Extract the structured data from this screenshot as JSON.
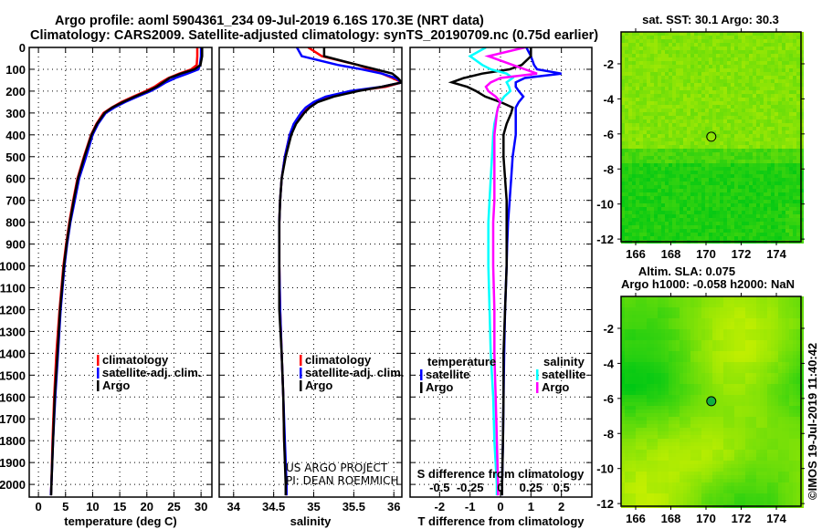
{
  "title": {
    "line1": "Argo profile: aoml 5904361_234 09-Jul-2019 6.16S 170.3E (NRT data)",
    "line2": "Climatology: CARS2009. Satellite-adjusted climatology: synTS_20190709.nc (0.75d earlier)"
  },
  "colors": {
    "climatology": "#ff0000",
    "satellite": "#0000ff",
    "argo": "#000000",
    "s_satellite": "#00ffff",
    "s_argo": "#ff00ff"
  },
  "depths": [
    0,
    40,
    80,
    100,
    120,
    140,
    160,
    180,
    200,
    225,
    250,
    275,
    300,
    350,
    400,
    500,
    600,
    700,
    800,
    900,
    1000,
    1200,
    1400,
    1600,
    1800,
    2000,
    2050
  ],
  "chart_data": [
    {
      "type": "line",
      "name": "temperature",
      "xlabel": "temperature (deg C)",
      "ylabel": "depth",
      "xlim": [
        -1.7,
        32
      ],
      "ylim": [
        2058,
        0
      ],
      "xticks": [
        0,
        5,
        10,
        15,
        20,
        25,
        30
      ],
      "yticks": [
        0,
        100,
        200,
        300,
        400,
        500,
        600,
        700,
        800,
        900,
        1000,
        1100,
        1200,
        1300,
        1400,
        1500,
        1600,
        1700,
        1800,
        1900,
        2000
      ],
      "legend": [
        {
          "label": "climatology",
          "color": "#ff0000"
        },
        {
          "label": "satellite-adj. clim.",
          "color": "#0000ff"
        },
        {
          "label": "Argo",
          "color": "#000000"
        }
      ],
      "series": [
        {
          "name": "climatology",
          "color": "#ff0000",
          "x": [
            29.3,
            29.3,
            29.2,
            28.2,
            26.0,
            24.0,
            22.6,
            21.4,
            19.8,
            17.5,
            15.3,
            13.5,
            12.0,
            10.7,
            9.7,
            8.4,
            7.2,
            6.4,
            5.7,
            5.1,
            4.6,
            3.9,
            3.3,
            2.9,
            2.6,
            2.4,
            2.3
          ]
        },
        {
          "name": "satellite-adj. clim.",
          "color": "#0000ff",
          "x": [
            30.0,
            30.0,
            29.8,
            29.5,
            27.5,
            25.3,
            23.5,
            22.2,
            20.7,
            18.3,
            16.0,
            14.0,
            12.4,
            11.0,
            10.0,
            8.8,
            7.5,
            6.7,
            5.9,
            5.3,
            4.8,
            4.1,
            3.6,
            3.1,
            2.7,
            2.4,
            2.3
          ]
        },
        {
          "name": "Argo",
          "color": "#000000",
          "x": [
            30.2,
            30.2,
            29.9,
            28.8,
            26.3,
            24.2,
            23.0,
            21.8,
            20.2,
            17.8,
            15.6,
            13.6,
            12.2,
            10.8,
            9.8,
            8.5,
            7.3,
            6.5,
            5.8,
            5.2,
            4.7,
            4.0,
            3.5,
            3.0,
            2.7,
            2.4,
            2.35
          ]
        }
      ]
    },
    {
      "type": "line",
      "name": "salinity",
      "xlabel": "salinity",
      "xlim": [
        33.82,
        36.1
      ],
      "ylim": [
        2058,
        0
      ],
      "xticks": [
        34,
        34.5,
        35,
        35.5,
        36
      ],
      "legend": [
        {
          "label": "climatology",
          "color": "#ff0000"
        },
        {
          "label": "satellite-adj. clim.",
          "color": "#0000ff"
        },
        {
          "label": "Argo",
          "color": "#000000"
        }
      ],
      "annotations": [
        "US ARGO PROJECT",
        "PI: DEAN ROEMMICH"
      ],
      "series": [
        {
          "name": "climatology",
          "color": "#ff0000",
          "x": [
            34.93,
            35.1,
            35.55,
            35.7,
            35.85,
            35.98,
            36.1,
            35.9,
            35.5,
            35.2,
            35.02,
            34.92,
            34.85,
            34.76,
            34.7,
            34.64,
            34.6,
            34.58,
            34.57,
            34.57,
            34.57,
            34.58,
            34.6,
            34.62,
            34.63,
            34.66,
            34.66
          ]
        },
        {
          "name": "satellite-adj. clim.",
          "color": "#0000ff",
          "x": [
            34.79,
            34.85,
            35.3,
            35.6,
            35.85,
            36.02,
            36.1,
            35.85,
            35.45,
            35.15,
            35.0,
            34.9,
            34.84,
            34.75,
            34.7,
            34.64,
            34.6,
            34.58,
            34.57,
            34.57,
            34.57,
            34.58,
            34.6,
            34.62,
            34.64,
            34.66,
            34.66
          ]
        },
        {
          "name": "Argo",
          "color": "#000000",
          "x": [
            35.13,
            35.13,
            35.55,
            35.77,
            35.98,
            36.05,
            36.1,
            35.85,
            35.55,
            35.25,
            35.05,
            34.95,
            34.88,
            34.78,
            34.72,
            34.65,
            34.6,
            34.58,
            34.57,
            34.57,
            34.57,
            34.57,
            34.6,
            34.62,
            34.63,
            34.65,
            34.65
          ]
        }
      ]
    },
    {
      "type": "line",
      "name": "difference",
      "xlabel": "T difference from climatology",
      "xlabel2": "S difference from climatology",
      "xlim": [
        -2.97,
        3.0
      ],
      "ylim": [
        2058,
        0
      ],
      "xticks": [
        -2,
        -1,
        0,
        1,
        2
      ],
      "xticks2": [
        -0.5,
        -0.25,
        0,
        0.25,
        0.5
      ],
      "xticks2_labels": [
        "-0.5",
        "-0.25",
        "0",
        "0.25",
        "0.5"
      ],
      "s_scale": 4,
      "legend_t": {
        "title": "temperature",
        "items": [
          {
            "label": "satellite",
            "color": "#0000ff"
          },
          {
            "label": "Argo",
            "color": "#000000"
          }
        ]
      },
      "legend_s": {
        "title": "salinity",
        "items": [
          {
            "label": "satellite",
            "color": "#00ffff"
          },
          {
            "label": "Argo",
            "color": "#ff00ff"
          }
        ]
      },
      "series": [
        {
          "name": "T satellite",
          "kind": "T",
          "color": "#0000ff",
          "x": [
            0.85,
            1.0,
            1.1,
            1.2,
            2.0,
            0.8,
            0.5,
            0.5,
            0.6,
            0.75,
            0.6,
            0.5,
            0.5,
            0.5,
            0.5,
            0.4,
            0.35,
            0.3,
            0.25,
            0.22,
            0.2,
            0.15,
            0.12,
            0.1,
            0.08,
            0.05,
            0.05
          ]
        },
        {
          "name": "T Argo",
          "kind": "T",
          "color": "#000000",
          "x": [
            1.0,
            1.0,
            0.7,
            0.3,
            -0.6,
            -1.2,
            -1.6,
            -1.1,
            -0.8,
            -0.5,
            0.0,
            0.4,
            0.35,
            0.2,
            0.1,
            0.1,
            0.15,
            0.2,
            0.2,
            0.2,
            0.2,
            0.15,
            0.1,
            0.1,
            0.08,
            0.05,
            0.05
          ]
        },
        {
          "name": "S satellite",
          "kind": "S",
          "color": "#00ffff",
          "x": [
            -0.12,
            -0.25,
            -0.15,
            -0.08,
            0.05,
            0.1,
            0.05,
            0.07,
            0.08,
            0.03,
            0.0,
            -0.02,
            -0.03,
            -0.05,
            -0.06,
            -0.07,
            -0.08,
            -0.09,
            -0.1,
            -0.1,
            -0.1,
            -0.09,
            -0.08,
            -0.06,
            -0.05,
            -0.03,
            -0.03
          ]
        },
        {
          "name": "S Argo",
          "kind": "S",
          "color": "#ff00ff",
          "x": [
            0.2,
            -0.1,
            0.1,
            0.2,
            0.3,
            0.0,
            -0.08,
            -0.12,
            -0.1,
            -0.04,
            0.0,
            -0.02,
            -0.03,
            -0.04,
            -0.05,
            -0.05,
            -0.05,
            -0.05,
            -0.06,
            -0.06,
            -0.06,
            -0.05,
            -0.05,
            -0.04,
            -0.03,
            -0.02,
            -0.02
          ]
        }
      ]
    }
  ],
  "maps": [
    {
      "name": "sst-map",
      "title1": "sat. SST: 30.1 Argo: 30.3",
      "lon_ticks": [
        "166",
        "168",
        "170",
        "172",
        "174"
      ],
      "lat_ticks": [
        "-2",
        "-4",
        "-6",
        "-8",
        "-10",
        "-12"
      ],
      "profile_lon": 170.3,
      "profile_lat": -6.16
    },
    {
      "name": "sla-map",
      "title1": "Altim. SLA: 0.075",
      "title2": "Argo h1000: -0.058 h2000: NaN",
      "lon_ticks": [
        "166",
        "168",
        "170",
        "172",
        "174"
      ],
      "lat_ticks": [
        "-2",
        "-4",
        "-6",
        "-8",
        "-10",
        "-12"
      ],
      "profile_lon": 170.3,
      "profile_lat": -6.16
    }
  ],
  "copyright": "©IMOS 19-Jul-2019 11:40:42"
}
